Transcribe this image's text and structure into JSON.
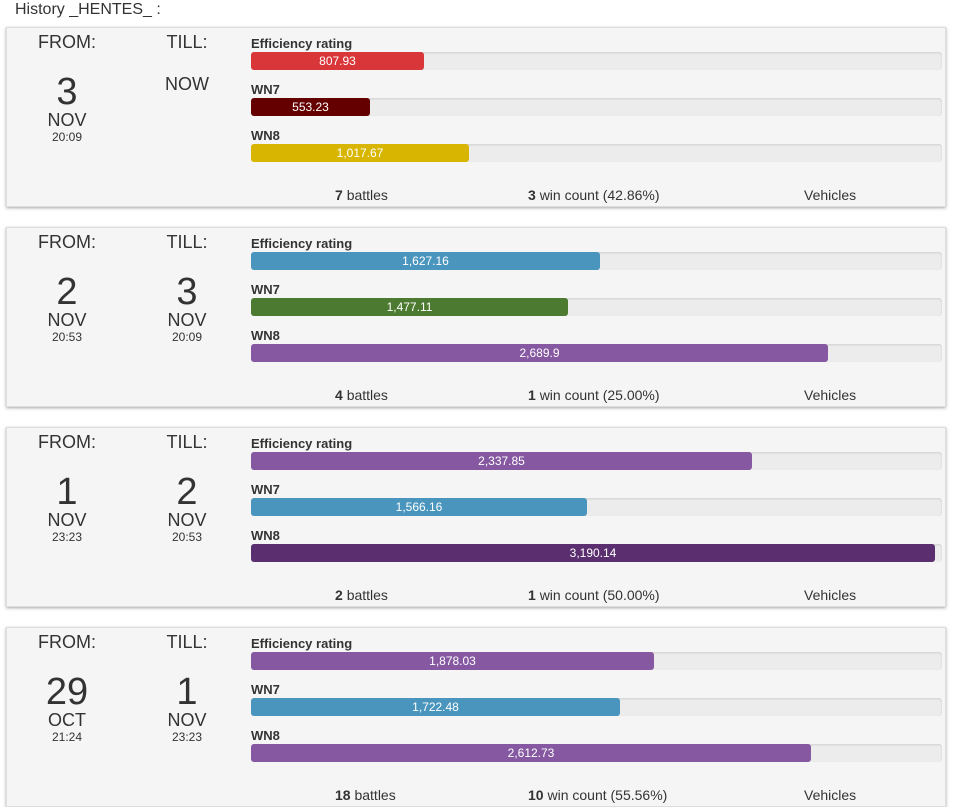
{
  "page": {
    "title": "History _HENTES_ :"
  },
  "labels": {
    "from": "FROM:",
    "till": "TILL:",
    "battles": "battles",
    "win_count": "win count",
    "vehicles": "Vehicles"
  },
  "colors": {
    "red": "#d9363a",
    "darkred": "#650000",
    "yellow": "#d8b500",
    "blue": "#4a95bd",
    "green": "#4b7a30",
    "purple": "#8658a1",
    "darkpurple": "#5b2f6f",
    "track": "#ececec"
  },
  "rating_scale_max": 3224,
  "cards": [
    {
      "from": {
        "day": "3",
        "month": "NOV",
        "time": "20:09"
      },
      "till": {
        "now": "NOW"
      },
      "metrics": [
        {
          "label": "Efficiency rating",
          "value": 807.93,
          "display": "807.93",
          "color": "#d9363a"
        },
        {
          "label": "WN7",
          "value": 553.23,
          "display": "553.23",
          "color": "#650000"
        },
        {
          "label": "WN8",
          "value": 1017.67,
          "display": "1,017.67",
          "color": "#d8b500"
        }
      ],
      "battles": "7",
      "wins": "3",
      "win_pct": "(42.86%)"
    },
    {
      "from": {
        "day": "2",
        "month": "NOV",
        "time": "20:53"
      },
      "till": {
        "day": "3",
        "month": "NOV",
        "time": "20:09"
      },
      "metrics": [
        {
          "label": "Efficiency rating",
          "value": 1627.16,
          "display": "1,627.16",
          "color": "#4a95bd"
        },
        {
          "label": "WN7",
          "value": 1477.11,
          "display": "1,477.11",
          "color": "#4b7a30"
        },
        {
          "label": "WN8",
          "value": 2689.9,
          "display": "2,689.9",
          "color": "#8658a1"
        }
      ],
      "battles": "4",
      "wins": "1",
      "win_pct": "(25.00%)"
    },
    {
      "from": {
        "day": "1",
        "month": "NOV",
        "time": "23:23"
      },
      "till": {
        "day": "2",
        "month": "NOV",
        "time": "20:53"
      },
      "metrics": [
        {
          "label": "Efficiency rating",
          "value": 2337.85,
          "display": "2,337.85",
          "color": "#8658a1"
        },
        {
          "label": "WN7",
          "value": 1566.16,
          "display": "1,566.16",
          "color": "#4a95bd"
        },
        {
          "label": "WN8",
          "value": 3190.14,
          "display": "3,190.14",
          "color": "#5b2f6f"
        }
      ],
      "battles": "2",
      "wins": "1",
      "win_pct": "(50.00%)"
    },
    {
      "from": {
        "day": "29",
        "month": "OCT",
        "time": "21:24"
      },
      "till": {
        "day": "1",
        "month": "NOV",
        "time": "23:23"
      },
      "metrics": [
        {
          "label": "Efficiency rating",
          "value": 1878.03,
          "display": "1,878.03",
          "color": "#8658a1"
        },
        {
          "label": "WN7",
          "value": 1722.48,
          "display": "1,722.48",
          "color": "#4a95bd"
        },
        {
          "label": "WN8",
          "value": 2612.73,
          "display": "2,612.73",
          "color": "#8658a1"
        }
      ],
      "battles": "18",
      "wins": "10",
      "win_pct": "(55.56%)"
    }
  ]
}
